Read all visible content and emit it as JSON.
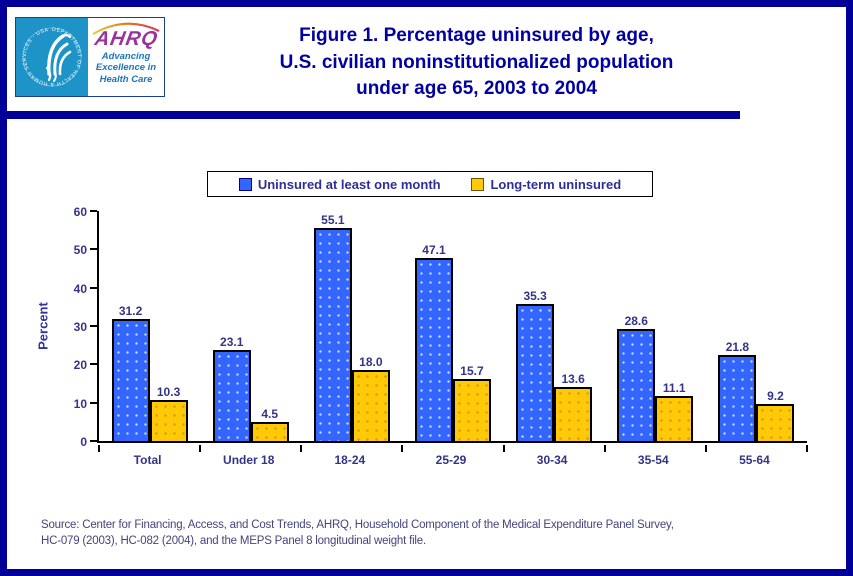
{
  "page": {
    "title_lines": [
      "Figure 1. Percentage uninsured by age,",
      "U.S. civilian noninstitutionalized population",
      "under age 65, 2003 to 2004"
    ],
    "source_lines": [
      "Source: Center for Financing, Access, and Cost Trends, AHRQ, Household Component of the Medical Expenditure Panel Survey,",
      "HC-079 (2003), HC-082 (2004), and the MEPS Panel 8 longitudinal weight file."
    ]
  },
  "logo": {
    "org_acronym": "AHRQ",
    "tagline_lines": [
      "Advancing",
      "Excellence in",
      "Health Care"
    ],
    "seal_text": "DEPARTMENT OF HEALTH & HUMAN SERVICES · USA"
  },
  "colors": {
    "page_border": "#000099",
    "title_text": "#0000A3",
    "label_text": "#333388",
    "bar_blue": "#3366FF",
    "bar_yellow": "#FFC908",
    "axis": "#000000",
    "source_text": "#44447E",
    "logo_cyan": "#1E93C8",
    "ahrq_purple": "#993399",
    "tagline_blue": "#1B75BC",
    "arc_orange": "#E87511"
  },
  "chart_data": {
    "type": "bar",
    "categories": [
      "Total",
      "Under 18",
      "18-24",
      "25-29",
      "30-34",
      "35-54",
      "55-64"
    ],
    "series": [
      {
        "name": "Uninsured at least one month",
        "color": "#3366FF",
        "values": [
          31.2,
          23.1,
          55.1,
          47.1,
          35.3,
          28.6,
          21.8
        ]
      },
      {
        "name": "Long-term uninsured",
        "color": "#FFC908",
        "values": [
          10.3,
          4.5,
          18.0,
          15.7,
          13.6,
          11.1,
          9.2
        ]
      }
    ],
    "xlabel": "",
    "ylabel": "Percent",
    "ylim": [
      0,
      60
    ],
    "yticks": [
      0,
      10,
      20,
      30,
      40,
      50,
      60
    ],
    "grid": false,
    "legend_position": "top",
    "value_labels": true
  }
}
